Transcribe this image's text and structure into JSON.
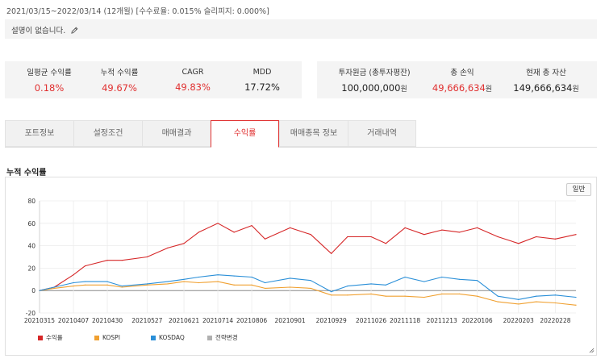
{
  "header": {
    "period": "2021/03/15~2022/03/14 (12개월) [수수료율: 0.015% 슬리피지: 0.000%]",
    "description": "설명이 없습니다."
  },
  "stats_left": [
    {
      "label": "일평균 수익률",
      "value": "0.18%",
      "color": "#e03030"
    },
    {
      "label": "누적 수익률",
      "value": "49.67%",
      "color": "#e03030"
    },
    {
      "label": "CAGR",
      "value": "49.83%",
      "color": "#e03030"
    },
    {
      "label": "MDD",
      "value": "17.72%",
      "color": "#222222"
    }
  ],
  "stats_right": [
    {
      "label": "투자원금 (총투자평잔)",
      "value": "100,000,000",
      "unit": "원",
      "color": "#222222"
    },
    {
      "label": "총 손익",
      "value": "49,666,634",
      "unit": "원",
      "color": "#e03030"
    },
    {
      "label": "현재 총 자산",
      "value": "149,666,634",
      "unit": "원",
      "color": "#222222"
    }
  ],
  "tabs": [
    {
      "label": "포트정보",
      "active": false
    },
    {
      "label": "설정조건",
      "active": false
    },
    {
      "label": "매매결과",
      "active": false
    },
    {
      "label": "수익률",
      "active": true
    },
    {
      "label": "매매종목 정보",
      "active": false
    },
    {
      "label": "거래내역",
      "active": false
    }
  ],
  "section_title": "누적 수익률",
  "chart_button": "일반",
  "chart_data": {
    "type": "line",
    "ylim": [
      -20,
      80
    ],
    "yticks": [
      -20,
      0,
      20,
      40,
      60,
      80
    ],
    "xlim": [
      "20210315",
      "20220314"
    ],
    "xticks": [
      "20210315",
      "20210407",
      "20210430",
      "20210527",
      "20210621",
      "20210714",
      "20210806",
      "20210901",
      "20210929",
      "20211026",
      "20211118",
      "20211213",
      "20220106",
      "20220203",
      "20220228"
    ],
    "grid": true,
    "legend": "bottom-left",
    "series": [
      {
        "name": "수익률",
        "color": "#d62728",
        "x": [
          "20210315",
          "20210325",
          "20210407",
          "20210415",
          "20210430",
          "20210510",
          "20210527",
          "20210610",
          "20210621",
          "20210701",
          "20210714",
          "20210725",
          "20210806",
          "20210815",
          "20210901",
          "20210915",
          "20210929",
          "20211010",
          "20211026",
          "20211105",
          "20211118",
          "20211201",
          "20211213",
          "20211225",
          "20220106",
          "20220120",
          "20220203",
          "20220215",
          "20220228",
          "20220314"
        ],
        "y": [
          0,
          3,
          14,
          22,
          27,
          27,
          30,
          38,
          42,
          52,
          60,
          52,
          58,
          46,
          56,
          50,
          33,
          48,
          48,
          42,
          56,
          50,
          54,
          52,
          56,
          48,
          42,
          48,
          46,
          50
        ]
      },
      {
        "name": "KOSPI",
        "color": "#f0a030",
        "x": [
          "20210315",
          "20210325",
          "20210407",
          "20210415",
          "20210430",
          "20210510",
          "20210527",
          "20210610",
          "20210621",
          "20210701",
          "20210714",
          "20210725",
          "20210806",
          "20210815",
          "20210901",
          "20210915",
          "20210929",
          "20211010",
          "20211026",
          "20211105",
          "20211118",
          "20211201",
          "20211213",
          "20211225",
          "20220106",
          "20220120",
          "20220203",
          "20220215",
          "20220228",
          "20220314"
        ],
        "y": [
          0,
          2,
          4,
          5,
          5,
          3,
          5,
          6,
          8,
          7,
          8,
          5,
          5,
          2,
          3,
          2,
          -4,
          -4,
          -3,
          -5,
          -5,
          -6,
          -3,
          -3,
          -5,
          -10,
          -12,
          -10,
          -11,
          -13
        ]
      },
      {
        "name": "KOSDAQ",
        "color": "#2a8fd8",
        "x": [
          "20210315",
          "20210325",
          "20210407",
          "20210415",
          "20210430",
          "20210510",
          "20210527",
          "20210610",
          "20210621",
          "20210701",
          "20210714",
          "20210725",
          "20210806",
          "20210815",
          "20210901",
          "20210915",
          "20210929",
          "20211010",
          "20211026",
          "20211105",
          "20211118",
          "20211201",
          "20211213",
          "20211225",
          "20220106",
          "20220120",
          "20220203",
          "20220215",
          "20220228",
          "20220314"
        ],
        "y": [
          0,
          3,
          7,
          8,
          8,
          4,
          6,
          8,
          10,
          12,
          14,
          13,
          12,
          7,
          11,
          9,
          -1,
          4,
          6,
          5,
          12,
          8,
          12,
          10,
          9,
          -5,
          -8,
          -5,
          -4,
          -6
        ]
      },
      {
        "name": "전략변경",
        "color": "#b0b0b0",
        "x": [],
        "y": []
      }
    ]
  }
}
